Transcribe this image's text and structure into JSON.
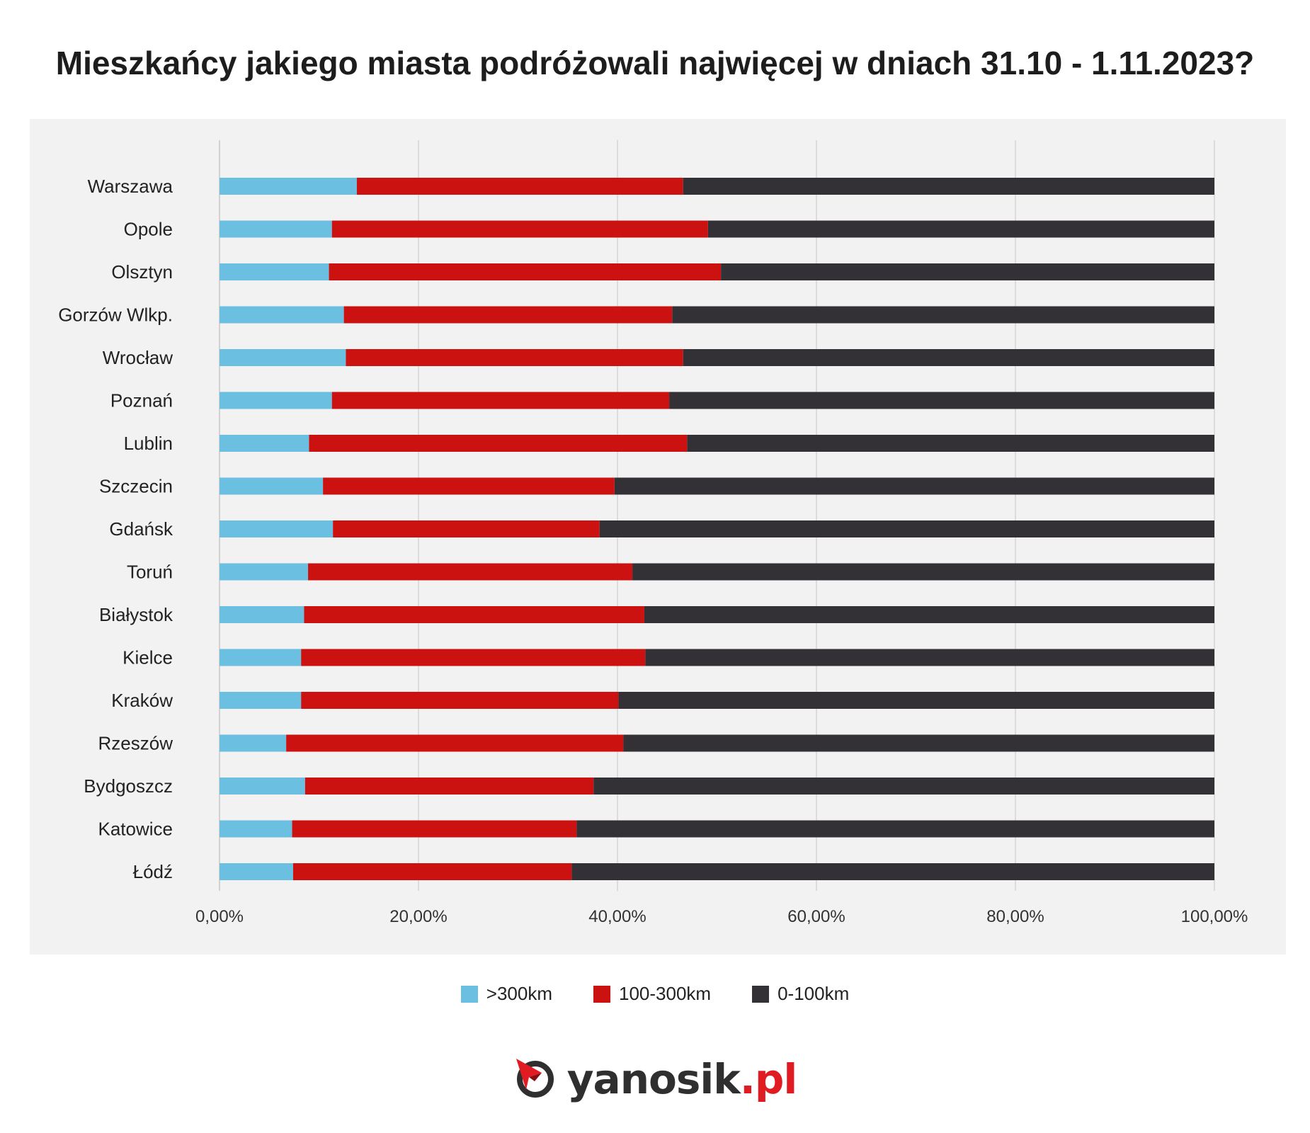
{
  "title": "Mieszkańcy jakiego miasta podróżowali najwięcej w dniach 31.10 - 1.11.2023?",
  "colors": {
    "over300": "#6bbfe0",
    "mid": "#cc1111",
    "near": "#333135",
    "panel": "#f2f2f2",
    "grid": "#d4d4d4",
    "brand_red": "#e11b22"
  },
  "legend": [
    {
      "label": ">300km",
      "color": "#6bbfe0"
    },
    {
      "label": "100-300km",
      "color": "#cc1111"
    },
    {
      "label": "0-100km",
      "color": "#333135"
    }
  ],
  "brand": {
    "name": "yanosik",
    "tld": ".pl",
    "icon": "yanosik-logo-icon"
  },
  "chart_data": {
    "type": "bar",
    "orientation": "horizontal",
    "stacked": true,
    "percent_stacked": true,
    "categories": [
      "Warszawa",
      "Opole",
      "Olsztyn",
      "Gorzów Wlkp.",
      "Wrocław",
      "Poznań",
      "Lublin",
      "Szczecin",
      "Gdańsk",
      "Toruń",
      "Białystok",
      "Kielce",
      "Kraków",
      "Rzeszów",
      "Bydgoszcz",
      "Katowice",
      "Łódź"
    ],
    "series": [
      {
        "name": ">300km",
        "values": [
          13.8,
          11.3,
          11.0,
          12.5,
          12.7,
          11.3,
          9.0,
          10.4,
          11.4,
          8.9,
          8.5,
          8.2,
          8.2,
          6.7,
          8.6,
          7.3,
          7.4
        ]
      },
      {
        "name": "100-300km",
        "values": [
          32.8,
          37.8,
          39.4,
          33.0,
          33.9,
          33.9,
          38.0,
          29.3,
          26.8,
          32.6,
          34.2,
          34.6,
          31.9,
          33.9,
          29.0,
          28.6,
          28.0
        ]
      },
      {
        "name": "0-100km",
        "values": [
          53.4,
          50.9,
          49.6,
          54.5,
          53.4,
          54.8,
          53.0,
          60.3,
          61.8,
          58.5,
          57.3,
          57.2,
          59.9,
          59.4,
          62.4,
          64.1,
          64.6
        ]
      }
    ],
    "xlim": [
      0,
      100
    ],
    "xticks": [
      "0,00%",
      "20,00%",
      "40,00%",
      "60,00%",
      "80,00%",
      "100,00%"
    ],
    "xtick_values": [
      0,
      20,
      40,
      60,
      80,
      100
    ],
    "grid": true,
    "legend_position": "bottom",
    "xlabel": "",
    "ylabel": ""
  }
}
